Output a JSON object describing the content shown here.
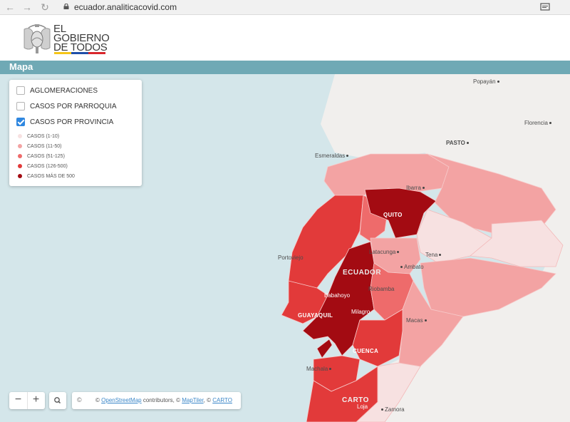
{
  "browser": {
    "url": "ecuador.analiticacovid.com",
    "back_icon": "arrow-left-icon",
    "forward_icon": "arrow-right-icon",
    "reload_icon": "reload-icon"
  },
  "header": {
    "logo_line1": "EL",
    "logo_line2": "GOBIERNO",
    "logo_line3": "DE TODOS",
    "stripe_colors": [
      "#f5c518",
      "#1f4fa8",
      "#d9262c"
    ]
  },
  "section": {
    "title": "Mapa"
  },
  "layers": {
    "items": [
      {
        "label": "AGLOMERACIONES",
        "checked": false
      },
      {
        "label": "CASOS POR PARROQUIA",
        "checked": false
      },
      {
        "label": "CASOS POR PROVINCIA",
        "checked": true
      }
    ],
    "legend": [
      {
        "label": "CASOS (1-10)",
        "color": "#f7e1e1"
      },
      {
        "label": "CASOS (11-50)",
        "color": "#f3a3a3"
      },
      {
        "label": "CASOS (51-125)",
        "color": "#ee6b6b"
      },
      {
        "label": "CASOS (126-500)",
        "color": "#e23a3a"
      },
      {
        "label": "CASOS MÁS DE 500",
        "color": "#a30b12"
      }
    ]
  },
  "map_labels": {
    "popayan": "Popayán",
    "pasto": "PASTO",
    "florencia": "Florencia",
    "esmeraldas": "Esmeraldas",
    "ibarra": "Ibarra",
    "quito": "QUITO",
    "portoviejo": "Portoviejo",
    "latacunga": "Latacunga",
    "tena": "Tena",
    "ecuador": "ECUADOR",
    "ambato": "Ambato",
    "riobamba": "Riobamba",
    "babahoyo": "Babahoyo",
    "guayaquil": "GUAYAQUIL",
    "milagro": "Milagro",
    "macas": "Macas",
    "cuenca": "CUENCA",
    "machala": "Machala",
    "carto": "CARTO",
    "loja": "Loja",
    "zamora": "Zamora"
  },
  "controls": {
    "zoom_out": "−",
    "zoom_in": "+",
    "attribution_c": "©",
    "attr_prefix": "©",
    "osm": "OpenStreetMap",
    "attr_mid": "contributors, ©",
    "maptiler": "MapTiler",
    "attr_sep": ", ©",
    "carto": "CARTO"
  }
}
